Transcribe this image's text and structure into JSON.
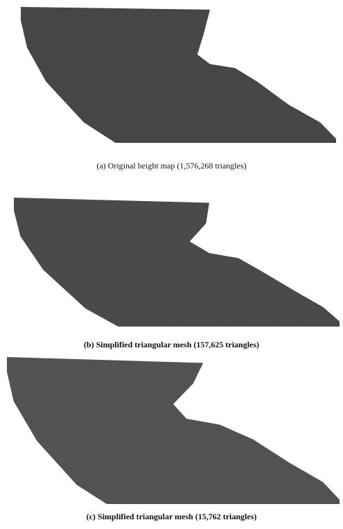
{
  "figures": [
    {
      "caption": "(a) Original height map (1,576,268 triangles)"
    },
    {
      "caption": "(b) Simplified triangular mesh (157,625 triangles)"
    },
    {
      "caption": "(c) Simplified triangular mesh (15,762 triangles)"
    }
  ]
}
